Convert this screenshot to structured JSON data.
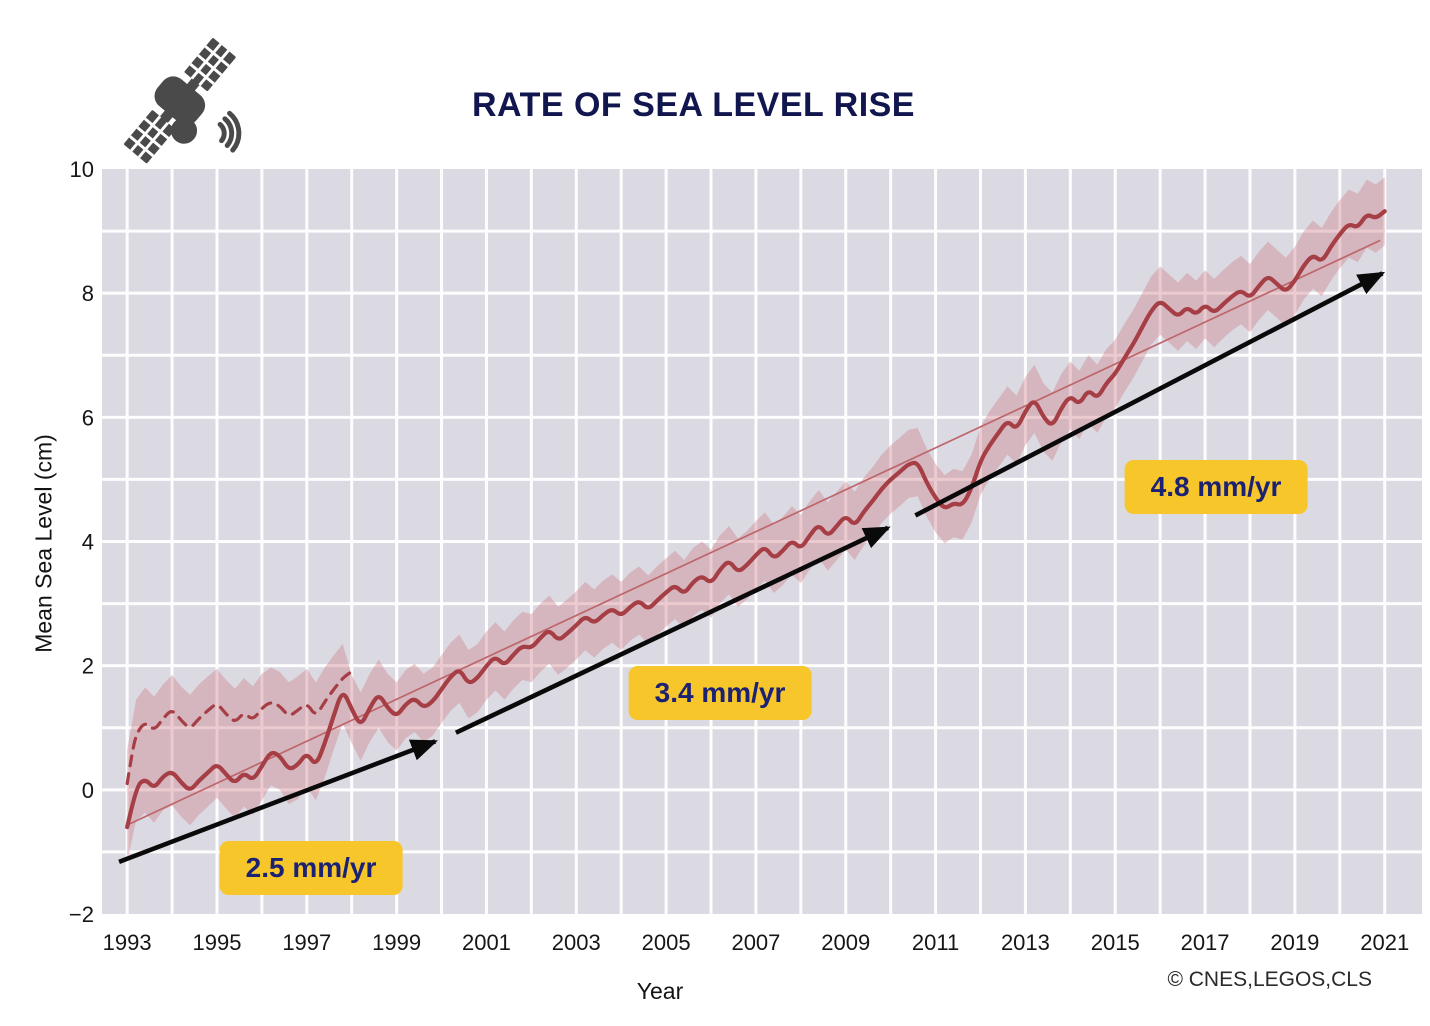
{
  "header": {
    "title": "RATE OF SEA LEVEL RISE"
  },
  "footer": {
    "credit": "© CNES,LEGOS,CLS"
  },
  "icons": {
    "satellite": "satellite-icon"
  },
  "colors": {
    "plot_background": "#dbdae2",
    "gridline": "#ffffff",
    "main_line": "#a63e46",
    "dashed_line": "#a63e46",
    "trend_line": "#bd666c",
    "band_fill": "#cf8089",
    "arrow": "#0a0a0a",
    "label_background": "#f7c62a",
    "label_text": "#1b2173",
    "title_text": "#12164f",
    "tick_text": "#161616"
  },
  "chart_data": {
    "type": "line",
    "title": "RATE OF SEA LEVEL RISE",
    "xlabel": "Year",
    "ylabel": "Mean Sea Level (cm)",
    "xlim": [
      1992.44,
      2021.83
    ],
    "ylim": [
      -2,
      10
    ],
    "xticks": [
      1993,
      1995,
      1997,
      1999,
      2001,
      2003,
      2005,
      2007,
      2009,
      2011,
      2013,
      2015,
      2017,
      2019,
      2021
    ],
    "yticks": [
      {
        "v": -2,
        "label": "−2"
      },
      {
        "v": 0,
        "label": "0"
      },
      {
        "v": 2,
        "label": "2"
      },
      {
        "v": 4,
        "label": "4"
      },
      {
        "v": 6,
        "label": "6"
      },
      {
        "v": 8,
        "label": "8"
      },
      {
        "v": 10,
        "label": "10"
      }
    ],
    "grid": {
      "on": true,
      "x_step_years": 1,
      "y_step_cm": 1
    },
    "legend": "none",
    "series": [
      {
        "name": "mean-sea-level-corrected",
        "style": "solid",
        "points": [
          [
            1993.0,
            -0.6
          ],
          [
            1993.2,
            0.05
          ],
          [
            1993.4,
            0.18
          ],
          [
            1993.6,
            0.02
          ],
          [
            1993.8,
            0.22
          ],
          [
            1994.0,
            0.3
          ],
          [
            1994.2,
            0.12
          ],
          [
            1994.4,
            -0.02
          ],
          [
            1994.6,
            0.15
          ],
          [
            1994.8,
            0.28
          ],
          [
            1995.0,
            0.42
          ],
          [
            1995.2,
            0.25
          ],
          [
            1995.4,
            0.1
          ],
          [
            1995.6,
            0.28
          ],
          [
            1995.8,
            0.15
          ],
          [
            1996.0,
            0.38
          ],
          [
            1996.2,
            0.62
          ],
          [
            1996.4,
            0.55
          ],
          [
            1996.6,
            0.32
          ],
          [
            1996.8,
            0.4
          ],
          [
            1997.0,
            0.6
          ],
          [
            1997.2,
            0.38
          ],
          [
            1997.4,
            0.75
          ],
          [
            1997.6,
            1.2
          ],
          [
            1997.8,
            1.62
          ],
          [
            1998.0,
            1.3
          ],
          [
            1998.2,
            1.02
          ],
          [
            1998.4,
            1.32
          ],
          [
            1998.6,
            1.55
          ],
          [
            1998.8,
            1.32
          ],
          [
            1999.0,
            1.18
          ],
          [
            1999.2,
            1.38
          ],
          [
            1999.4,
            1.48
          ],
          [
            1999.6,
            1.32
          ],
          [
            1999.8,
            1.42
          ],
          [
            2000.0,
            1.62
          ],
          [
            2000.2,
            1.82
          ],
          [
            2000.4,
            1.95
          ],
          [
            2000.6,
            1.7
          ],
          [
            2000.8,
            1.8
          ],
          [
            2001.0,
            2.0
          ],
          [
            2001.2,
            2.15
          ],
          [
            2001.4,
            2.0
          ],
          [
            2001.6,
            2.18
          ],
          [
            2001.8,
            2.32
          ],
          [
            2002.0,
            2.28
          ],
          [
            2002.2,
            2.45
          ],
          [
            2002.4,
            2.58
          ],
          [
            2002.6,
            2.4
          ],
          [
            2002.8,
            2.52
          ],
          [
            2003.0,
            2.65
          ],
          [
            2003.2,
            2.8
          ],
          [
            2003.4,
            2.68
          ],
          [
            2003.6,
            2.82
          ],
          [
            2003.8,
            2.92
          ],
          [
            2004.0,
            2.8
          ],
          [
            2004.2,
            2.95
          ],
          [
            2004.4,
            3.05
          ],
          [
            2004.6,
            2.9
          ],
          [
            2004.8,
            3.05
          ],
          [
            2005.0,
            3.18
          ],
          [
            2005.2,
            3.3
          ],
          [
            2005.4,
            3.15
          ],
          [
            2005.6,
            3.35
          ],
          [
            2005.8,
            3.45
          ],
          [
            2006.0,
            3.32
          ],
          [
            2006.2,
            3.55
          ],
          [
            2006.4,
            3.7
          ],
          [
            2006.6,
            3.5
          ],
          [
            2006.8,
            3.62
          ],
          [
            2007.0,
            3.78
          ],
          [
            2007.2,
            3.92
          ],
          [
            2007.4,
            3.72
          ],
          [
            2007.6,
            3.85
          ],
          [
            2007.8,
            4.02
          ],
          [
            2008.0,
            3.88
          ],
          [
            2008.2,
            4.1
          ],
          [
            2008.4,
            4.28
          ],
          [
            2008.6,
            4.08
          ],
          [
            2008.8,
            4.25
          ],
          [
            2009.0,
            4.42
          ],
          [
            2009.2,
            4.25
          ],
          [
            2009.4,
            4.48
          ],
          [
            2009.6,
            4.65
          ],
          [
            2009.8,
            4.85
          ],
          [
            2010.0,
            5.0
          ],
          [
            2010.2,
            5.12
          ],
          [
            2010.4,
            5.25
          ],
          [
            2010.6,
            5.28
          ],
          [
            2010.8,
            4.95
          ],
          [
            2011.0,
            4.7
          ],
          [
            2011.2,
            4.52
          ],
          [
            2011.4,
            4.62
          ],
          [
            2011.6,
            4.58
          ],
          [
            2011.8,
            4.85
          ],
          [
            2012.0,
            5.3
          ],
          [
            2012.2,
            5.55
          ],
          [
            2012.4,
            5.75
          ],
          [
            2012.6,
            5.95
          ],
          [
            2012.8,
            5.8
          ],
          [
            2013.0,
            6.1
          ],
          [
            2013.2,
            6.3
          ],
          [
            2013.4,
            6.0
          ],
          [
            2013.6,
            5.85
          ],
          [
            2013.8,
            6.15
          ],
          [
            2014.0,
            6.35
          ],
          [
            2014.2,
            6.2
          ],
          [
            2014.4,
            6.45
          ],
          [
            2014.6,
            6.3
          ],
          [
            2014.8,
            6.55
          ],
          [
            2015.0,
            6.7
          ],
          [
            2015.2,
            6.95
          ],
          [
            2015.4,
            7.18
          ],
          [
            2015.6,
            7.45
          ],
          [
            2015.8,
            7.72
          ],
          [
            2016.0,
            7.88
          ],
          [
            2016.2,
            7.75
          ],
          [
            2016.4,
            7.62
          ],
          [
            2016.6,
            7.78
          ],
          [
            2016.8,
            7.65
          ],
          [
            2017.0,
            7.82
          ],
          [
            2017.2,
            7.68
          ],
          [
            2017.4,
            7.82
          ],
          [
            2017.6,
            7.95
          ],
          [
            2017.8,
            8.05
          ],
          [
            2018.0,
            7.92
          ],
          [
            2018.2,
            8.12
          ],
          [
            2018.4,
            8.28
          ],
          [
            2018.6,
            8.15
          ],
          [
            2018.8,
            8.02
          ],
          [
            2019.0,
            8.2
          ],
          [
            2019.2,
            8.45
          ],
          [
            2019.4,
            8.62
          ],
          [
            2019.6,
            8.5
          ],
          [
            2019.8,
            8.75
          ],
          [
            2020.0,
            8.95
          ],
          [
            2020.2,
            9.12
          ],
          [
            2020.4,
            9.05
          ],
          [
            2020.6,
            9.28
          ],
          [
            2020.8,
            9.2
          ],
          [
            2021.0,
            9.32
          ]
        ]
      },
      {
        "name": "early-record-dashed",
        "style": "dashed",
        "points": [
          [
            1993.0,
            0.1
          ],
          [
            1993.1,
            0.55
          ],
          [
            1993.2,
            0.9
          ],
          [
            1993.4,
            1.1
          ],
          [
            1993.6,
            0.95
          ],
          [
            1993.8,
            1.15
          ],
          [
            1994.0,
            1.3
          ],
          [
            1994.2,
            1.12
          ],
          [
            1994.4,
            0.98
          ],
          [
            1994.6,
            1.15
          ],
          [
            1994.8,
            1.28
          ],
          [
            1995.0,
            1.4
          ],
          [
            1995.2,
            1.22
          ],
          [
            1995.4,
            1.08
          ],
          [
            1995.6,
            1.25
          ],
          [
            1995.8,
            1.12
          ],
          [
            1996.0,
            1.32
          ],
          [
            1996.2,
            1.42
          ],
          [
            1996.4,
            1.35
          ],
          [
            1996.6,
            1.18
          ],
          [
            1996.8,
            1.28
          ],
          [
            1997.0,
            1.4
          ],
          [
            1997.2,
            1.18
          ],
          [
            1997.4,
            1.42
          ],
          [
            1997.6,
            1.62
          ],
          [
            1997.8,
            1.8
          ],
          [
            1997.95,
            1.88
          ]
        ]
      }
    ],
    "trend_line": {
      "points": [
        [
          1993.05,
          -0.55
        ],
        [
          2020.9,
          8.85
        ]
      ]
    },
    "uncertainty_band": {
      "halfwidth_cm": 0.55,
      "basis": "envelope of solid and dashed series"
    },
    "annotations": [
      {
        "label": "2.5 mm/yr",
        "arrow": {
          "from": [
            1992.82,
            -1.16
          ],
          "to": [
            1999.86,
            0.78
          ]
        },
        "label_center": [
          1997.1,
          -1.26
        ]
      },
      {
        "label": "3.4 mm/yr",
        "arrow": {
          "from": [
            2000.32,
            0.92
          ],
          "to": [
            2009.94,
            4.22
          ]
        },
        "label_center": [
          2006.2,
          1.56
        ]
      },
      {
        "label": "4.8 mm/yr",
        "arrow": {
          "from": [
            2010.55,
            4.42
          ],
          "to": [
            2020.95,
            8.32
          ]
        },
        "label_center": [
          2017.25,
          4.88
        ]
      }
    ]
  }
}
